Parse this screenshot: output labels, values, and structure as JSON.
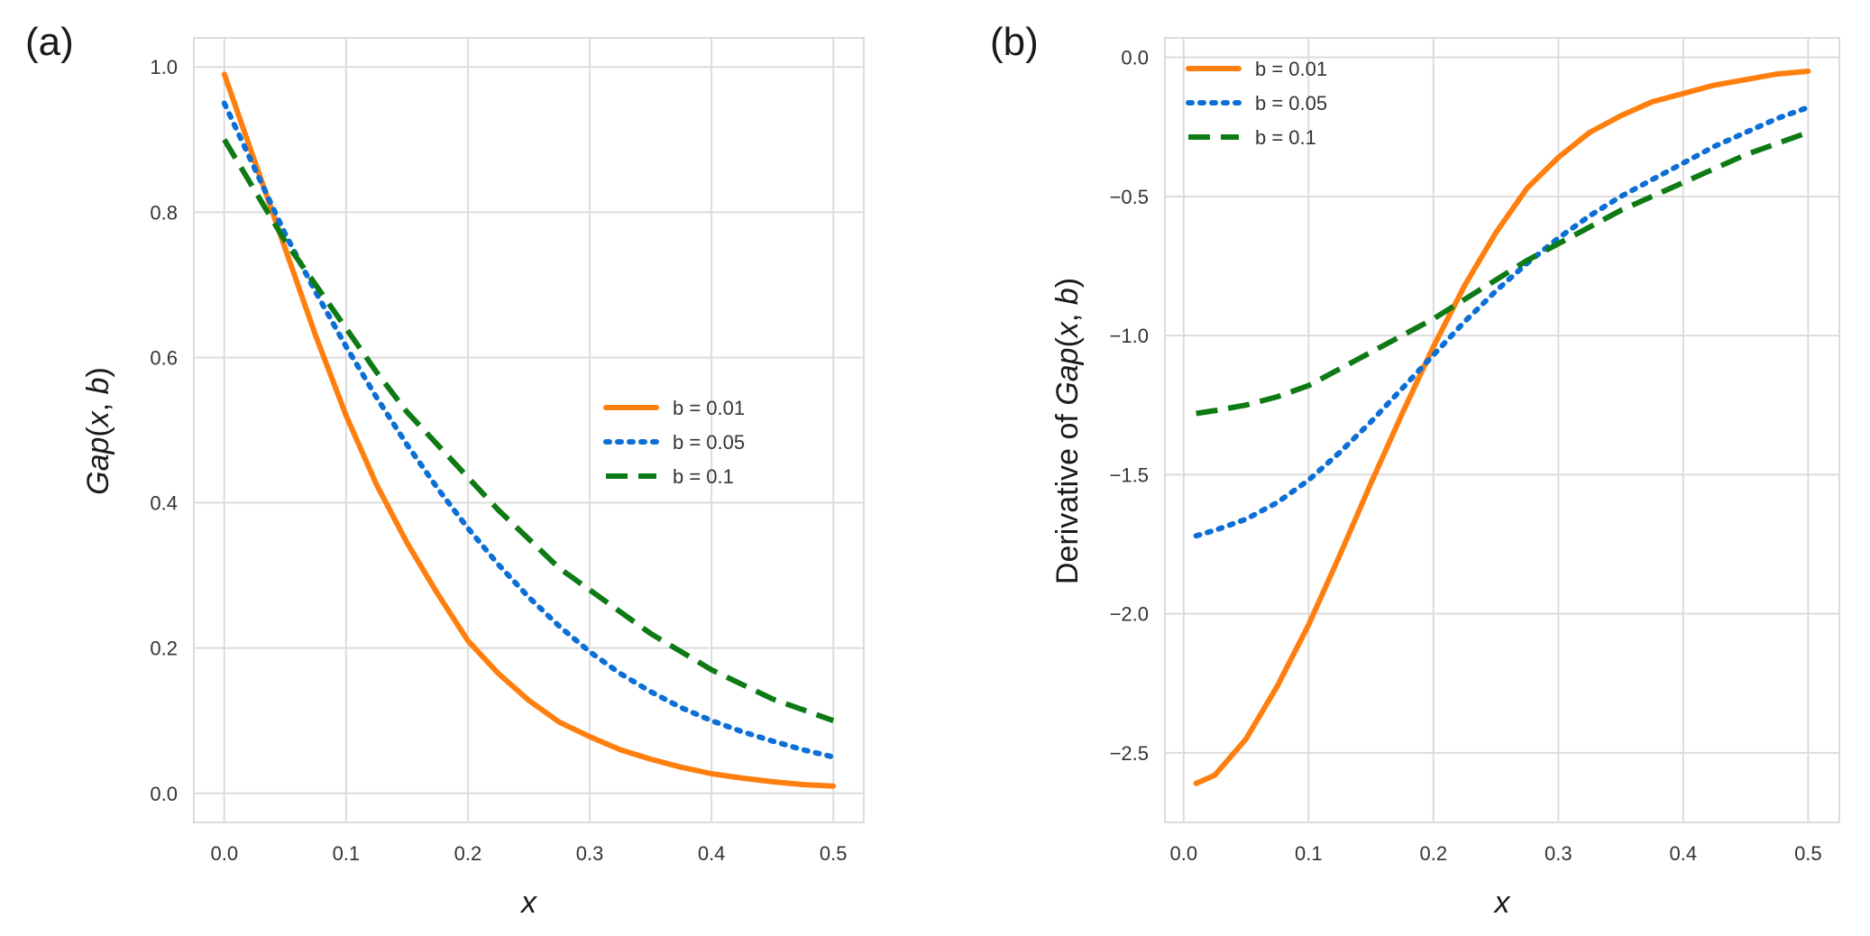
{
  "chart_data": [
    {
      "panel_label": "(a)",
      "type": "line",
      "title": "",
      "xlabel": "x",
      "ylabel_parts": [
        [
          "Gap",
          true
        ],
        [
          "(",
          false
        ],
        [
          "x",
          true
        ],
        [
          ", ",
          false
        ],
        [
          "b",
          true
        ],
        [
          ")",
          false
        ]
      ],
      "xlim": [
        -0.025,
        0.525
      ],
      "ylim": [
        -0.04,
        1.04
      ],
      "xticks": [
        0.0,
        0.1,
        0.2,
        0.3,
        0.4,
        0.5
      ],
      "xtick_labels": [
        "0.0",
        "0.1",
        "0.2",
        "0.3",
        "0.4",
        "0.5"
      ],
      "yticks": [
        0.0,
        0.2,
        0.4,
        0.6,
        0.8,
        1.0
      ],
      "ytick_labels": [
        "0.0",
        "0.2",
        "0.4",
        "0.6",
        "0.8",
        "1.0"
      ],
      "grid": true,
      "legend_position": "center-right",
      "legend": [
        "b = 0.01",
        "b = 0.05",
        "b = 0.1"
      ],
      "series": [
        {
          "name": "b = 0.01",
          "color": "#ff7f0e",
          "style": "solid",
          "x": [
            0.0,
            0.025,
            0.05,
            0.075,
            0.1,
            0.125,
            0.15,
            0.175,
            0.2,
            0.225,
            0.25,
            0.275,
            0.3,
            0.325,
            0.35,
            0.375,
            0.4,
            0.425,
            0.45,
            0.475,
            0.5
          ],
          "y": [
            0.99,
            0.87,
            0.75,
            0.63,
            0.52,
            0.425,
            0.345,
            0.275,
            0.21,
            0.165,
            0.128,
            0.098,
            0.078,
            0.06,
            0.047,
            0.036,
            0.027,
            0.021,
            0.016,
            0.012,
            0.01
          ]
        },
        {
          "name": "b = 0.05",
          "color": "#0b6fd6",
          "style": "dotted",
          "x": [
            0.0,
            0.025,
            0.05,
            0.075,
            0.1,
            0.125,
            0.15,
            0.175,
            0.2,
            0.225,
            0.25,
            0.275,
            0.3,
            0.325,
            0.35,
            0.375,
            0.4,
            0.425,
            0.45,
            0.475,
            0.5
          ],
          "y": [
            0.95,
            0.86,
            0.77,
            0.69,
            0.615,
            0.545,
            0.48,
            0.42,
            0.365,
            0.315,
            0.27,
            0.23,
            0.195,
            0.165,
            0.14,
            0.118,
            0.1,
            0.085,
            0.072,
            0.06,
            0.05
          ]
        },
        {
          "name": "b = 0.1",
          "color": "#0e7a14",
          "style": "dashed",
          "x": [
            0.0,
            0.025,
            0.05,
            0.075,
            0.1,
            0.125,
            0.15,
            0.175,
            0.2,
            0.225,
            0.25,
            0.275,
            0.3,
            0.325,
            0.35,
            0.375,
            0.4,
            0.425,
            0.45,
            0.475,
            0.5
          ],
          "y": [
            0.9,
            0.83,
            0.76,
            0.7,
            0.64,
            0.58,
            0.525,
            0.48,
            0.435,
            0.39,
            0.35,
            0.31,
            0.28,
            0.25,
            0.22,
            0.195,
            0.17,
            0.15,
            0.13,
            0.115,
            0.1
          ]
        }
      ]
    },
    {
      "panel_label": "(b)",
      "type": "line",
      "title": "",
      "xlabel": "x",
      "ylabel_parts": [
        [
          "Derivative of ",
          false
        ],
        [
          "Gap",
          true
        ],
        [
          "(",
          false
        ],
        [
          "x",
          true
        ],
        [
          ", ",
          false
        ],
        [
          "b",
          true
        ],
        [
          ")",
          false
        ]
      ],
      "xlim": [
        -0.015,
        0.525
      ],
      "ylim": [
        -2.75,
        0.07
      ],
      "xticks": [
        0.0,
        0.1,
        0.2,
        0.3,
        0.4,
        0.5
      ],
      "xtick_labels": [
        "0.0",
        "0.1",
        "0.2",
        "0.3",
        "0.4",
        "0.5"
      ],
      "yticks": [
        0.0,
        -0.5,
        -1.0,
        -1.5,
        -2.0,
        -2.5
      ],
      "ytick_labels": [
        "0.0",
        "−0.5",
        "−1.0",
        "−1.5",
        "−2.0",
        "−2.5"
      ],
      "grid": true,
      "legend_position": "top-left",
      "legend": [
        "b = 0.01",
        "b = 0.05",
        "b = 0.1"
      ],
      "series": [
        {
          "name": "b = 0.01",
          "color": "#ff7f0e",
          "style": "solid",
          "x": [
            0.01,
            0.025,
            0.05,
            0.075,
            0.1,
            0.125,
            0.15,
            0.175,
            0.2,
            0.225,
            0.25,
            0.275,
            0.3,
            0.325,
            0.35,
            0.375,
            0.4,
            0.425,
            0.45,
            0.475,
            0.5
          ],
          "y": [
            -2.61,
            -2.58,
            -2.45,
            -2.26,
            -2.04,
            -1.79,
            -1.53,
            -1.28,
            -1.04,
            -0.82,
            -0.63,
            -0.47,
            -0.36,
            -0.27,
            -0.21,
            -0.16,
            -0.13,
            -0.1,
            -0.08,
            -0.06,
            -0.05
          ]
        },
        {
          "name": "b = 0.05",
          "color": "#0b6fd6",
          "style": "dotted",
          "x": [
            0.01,
            0.025,
            0.05,
            0.075,
            0.1,
            0.125,
            0.15,
            0.175,
            0.2,
            0.225,
            0.25,
            0.275,
            0.3,
            0.325,
            0.35,
            0.375,
            0.4,
            0.425,
            0.45,
            0.475,
            0.5
          ],
          "y": [
            -1.72,
            -1.7,
            -1.66,
            -1.6,
            -1.52,
            -1.42,
            -1.31,
            -1.19,
            -1.07,
            -0.95,
            -0.84,
            -0.74,
            -0.65,
            -0.57,
            -0.5,
            -0.44,
            -0.38,
            -0.32,
            -0.27,
            -0.22,
            -0.18
          ]
        },
        {
          "name": "b = 0.1",
          "color": "#0e7a14",
          "style": "dashed",
          "x": [
            0.01,
            0.025,
            0.05,
            0.075,
            0.1,
            0.125,
            0.15,
            0.175,
            0.2,
            0.225,
            0.25,
            0.275,
            0.3,
            0.325,
            0.35,
            0.375,
            0.4,
            0.425,
            0.45,
            0.475,
            0.5
          ],
          "y": [
            -1.28,
            -1.27,
            -1.25,
            -1.22,
            -1.18,
            -1.12,
            -1.06,
            -1.0,
            -0.94,
            -0.87,
            -0.8,
            -0.73,
            -0.67,
            -0.61,
            -0.55,
            -0.5,
            -0.45,
            -0.4,
            -0.35,
            -0.31,
            -0.27
          ]
        }
      ]
    }
  ]
}
